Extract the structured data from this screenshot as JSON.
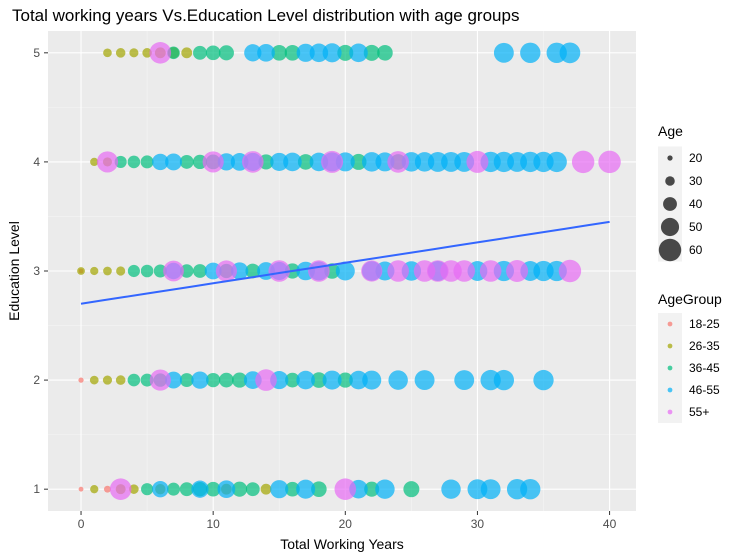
{
  "chart_data": {
    "type": "scatter",
    "title": "Total working years Vs.Education Level distribution with age groups",
    "xlabel": "Total Working Years",
    "ylabel": "Education Level",
    "xlim": [
      -2.5,
      42
    ],
    "ylim": [
      0.8,
      5.2
    ],
    "xticks": [
      0,
      10,
      20,
      30,
      40
    ],
    "yticks": [
      1,
      2,
      3,
      4,
      5
    ],
    "grid": true,
    "legends": {
      "size": {
        "title": "Age",
        "entries": [
          20,
          30,
          40,
          50,
          60
        ]
      },
      "color": {
        "title": "AgeGroup",
        "entries": [
          {
            "label": "18-25",
            "color": "#F8766D"
          },
          {
            "label": "26-35",
            "color": "#A3A500"
          },
          {
            "label": "36-45",
            "color": "#00BF7D"
          },
          {
            "label": "46-55",
            "color": "#00B0F6"
          },
          {
            "label": "55+",
            "color": "#E76BF3"
          }
        ]
      },
      "placement": "right"
    },
    "trend_line": {
      "color": "#3366FF",
      "x": [
        0,
        40
      ],
      "y": [
        2.7,
        3.45
      ]
    },
    "series": [
      {
        "name": "18-25",
        "color": "#F8766D",
        "points": [
          [
            0,
            1,
            19
          ],
          [
            0,
            2,
            20
          ],
          [
            0,
            3,
            19
          ],
          [
            2,
            1,
            24
          ]
        ]
      },
      {
        "name": "26-35",
        "color": "#A3A500",
        "points": [
          [
            1,
            1,
            27
          ],
          [
            3,
            1,
            31
          ],
          [
            4,
            1,
            30
          ],
          [
            6,
            1,
            32
          ],
          [
            11,
            1,
            33
          ],
          [
            14,
            1,
            33
          ],
          [
            1,
            2,
            28
          ],
          [
            2,
            2,
            29
          ],
          [
            3,
            2,
            30
          ],
          [
            0,
            3,
            26
          ],
          [
            1,
            3,
            27
          ],
          [
            2,
            3,
            28
          ],
          [
            3,
            3,
            29
          ],
          [
            1,
            4,
            27
          ],
          [
            2,
            4,
            29
          ],
          [
            2,
            5,
            28
          ],
          [
            3,
            5,
            30
          ],
          [
            4,
            5,
            29
          ],
          [
            5,
            5,
            30
          ],
          [
            6,
            5,
            33
          ],
          [
            7,
            5,
            34
          ],
          [
            8,
            5,
            33
          ]
        ]
      },
      {
        "name": "36-45",
        "color": "#00BF7D",
        "points": [
          [
            5,
            1,
            36
          ],
          [
            7,
            1,
            38
          ],
          [
            8,
            1,
            40
          ],
          [
            9,
            1,
            41
          ],
          [
            10,
            1,
            42
          ],
          [
            12,
            1,
            43
          ],
          [
            13,
            1,
            40
          ],
          [
            16,
            1,
            42
          ],
          [
            18,
            1,
            44
          ],
          [
            22,
            1,
            43
          ],
          [
            25,
            1,
            45
          ],
          [
            4,
            2,
            37
          ],
          [
            5,
            2,
            38
          ],
          [
            6,
            2,
            39
          ],
          [
            8,
            2,
            40
          ],
          [
            10,
            2,
            41
          ],
          [
            11,
            2,
            42
          ],
          [
            12,
            2,
            43
          ],
          [
            16,
            2,
            42
          ],
          [
            18,
            2,
            44
          ],
          [
            20,
            2,
            43
          ],
          [
            4,
            3,
            36
          ],
          [
            5,
            3,
            37
          ],
          [
            6,
            3,
            38
          ],
          [
            8,
            3,
            39
          ],
          [
            9,
            3,
            40
          ],
          [
            11,
            3,
            41
          ],
          [
            13,
            3,
            42
          ],
          [
            16,
            3,
            43
          ],
          [
            19,
            3,
            44
          ],
          [
            3,
            4,
            36
          ],
          [
            4,
            4,
            37
          ],
          [
            5,
            4,
            38
          ],
          [
            8,
            4,
            40
          ],
          [
            9,
            4,
            41
          ],
          [
            10,
            4,
            42
          ],
          [
            14,
            4,
            43
          ],
          [
            17,
            4,
            44
          ],
          [
            21,
            4,
            45
          ],
          [
            24,
            4,
            44
          ],
          [
            7,
            5,
            37
          ],
          [
            9,
            5,
            40
          ],
          [
            10,
            5,
            42
          ],
          [
            11,
            5,
            43
          ],
          [
            15,
            5,
            44
          ],
          [
            16,
            5,
            44
          ],
          [
            20,
            5,
            45
          ],
          [
            22,
            5,
            45
          ],
          [
            23,
            5,
            44
          ]
        ]
      },
      {
        "name": "46-55",
        "color": "#00B0F6",
        "points": [
          [
            6,
            1,
            46
          ],
          [
            9,
            1,
            48
          ],
          [
            11,
            1,
            49
          ],
          [
            15,
            1,
            50
          ],
          [
            17,
            1,
            52
          ],
          [
            21,
            1,
            51
          ],
          [
            23,
            1,
            53
          ],
          [
            28,
            1,
            53
          ],
          [
            30,
            1,
            54
          ],
          [
            31,
            1,
            54
          ],
          [
            33,
            1,
            55
          ],
          [
            34,
            1,
            55
          ],
          [
            7,
            2,
            47
          ],
          [
            9,
            2,
            48
          ],
          [
            13,
            2,
            49
          ],
          [
            15,
            2,
            50
          ],
          [
            17,
            2,
            51
          ],
          [
            19,
            2,
            52
          ],
          [
            21,
            2,
            51
          ],
          [
            22,
            2,
            52
          ],
          [
            24,
            2,
            53
          ],
          [
            26,
            2,
            54
          ],
          [
            29,
            2,
            54
          ],
          [
            31,
            2,
            55
          ],
          [
            32,
            2,
            55
          ],
          [
            35,
            2,
            55
          ],
          [
            7,
            3,
            46
          ],
          [
            10,
            3,
            47
          ],
          [
            12,
            3,
            48
          ],
          [
            14,
            3,
            49
          ],
          [
            15,
            3,
            50
          ],
          [
            17,
            3,
            51
          ],
          [
            18,
            3,
            52
          ],
          [
            20,
            3,
            52
          ],
          [
            22,
            3,
            53
          ],
          [
            23,
            3,
            52
          ],
          [
            25,
            3,
            53
          ],
          [
            27,
            3,
            54
          ],
          [
            30,
            3,
            54
          ],
          [
            32,
            3,
            55
          ],
          [
            34,
            3,
            54
          ],
          [
            35,
            3,
            55
          ],
          [
            36,
            3,
            55
          ],
          [
            6,
            4,
            46
          ],
          [
            7,
            4,
            47
          ],
          [
            11,
            4,
            48
          ],
          [
            12,
            4,
            49
          ],
          [
            13,
            4,
            50
          ],
          [
            15,
            4,
            50
          ],
          [
            16,
            4,
            51
          ],
          [
            18,
            4,
            51
          ],
          [
            19,
            4,
            52
          ],
          [
            20,
            4,
            52
          ],
          [
            22,
            4,
            53
          ],
          [
            23,
            4,
            52
          ],
          [
            25,
            4,
            53
          ],
          [
            26,
            4,
            53
          ],
          [
            27,
            4,
            54
          ],
          [
            28,
            4,
            54
          ],
          [
            29,
            4,
            54
          ],
          [
            31,
            4,
            55
          ],
          [
            32,
            4,
            55
          ],
          [
            33,
            4,
            54
          ],
          [
            34,
            4,
            55
          ],
          [
            35,
            4,
            55
          ],
          [
            36,
            4,
            55
          ],
          [
            13,
            5,
            48
          ],
          [
            14,
            5,
            49
          ],
          [
            17,
            5,
            50
          ],
          [
            18,
            5,
            51
          ],
          [
            19,
            5,
            52
          ],
          [
            21,
            5,
            51
          ],
          [
            32,
            5,
            54
          ],
          [
            34,
            5,
            55
          ],
          [
            36,
            5,
            55
          ],
          [
            37,
            5,
            56
          ]
        ]
      },
      {
        "name": "55+",
        "color": "#E76BF3",
        "points": [
          [
            3,
            1,
            58
          ],
          [
            20,
            1,
            58
          ],
          [
            6,
            2,
            57
          ],
          [
            14,
            2,
            58
          ],
          [
            7,
            3,
            56
          ],
          [
            11,
            3,
            57
          ],
          [
            15,
            3,
            58
          ],
          [
            18,
            3,
            58
          ],
          [
            22,
            3,
            57
          ],
          [
            24,
            3,
            58
          ],
          [
            26,
            3,
            58
          ],
          [
            27,
            3,
            58
          ],
          [
            28,
            3,
            58
          ],
          [
            29,
            3,
            58
          ],
          [
            31,
            3,
            58
          ],
          [
            33,
            3,
            59
          ],
          [
            37,
            3,
            60
          ],
          [
            2,
            4,
            57
          ],
          [
            10,
            4,
            57
          ],
          [
            13,
            4,
            58
          ],
          [
            19,
            4,
            59
          ],
          [
            24,
            4,
            58
          ],
          [
            30,
            4,
            59
          ],
          [
            38,
            4,
            60
          ],
          [
            40,
            4,
            60
          ],
          [
            6,
            5,
            58
          ]
        ]
      }
    ]
  }
}
